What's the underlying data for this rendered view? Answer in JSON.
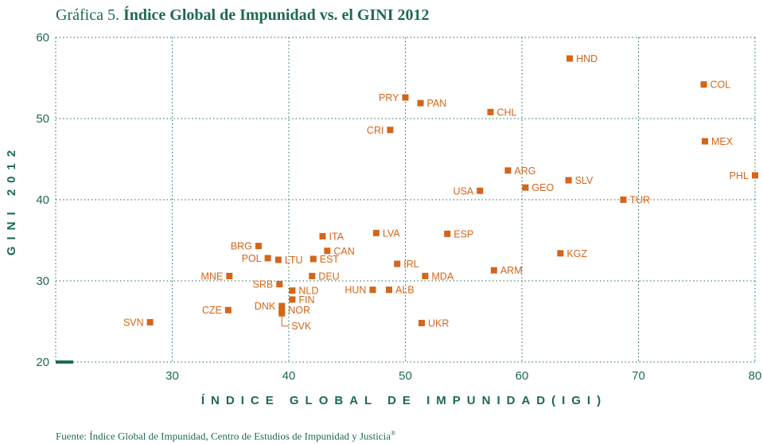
{
  "title_prefix": "Gráfica 5.",
  "title_main": "Índice Global de Impunidad vs. el GINI 2012",
  "source_text": "Fuente: Índice Global de Impunidad, Centro de Estudios de Impunidad y Justicia",
  "source_mark": "®",
  "colors": {
    "accent": "#1d6b4a",
    "marker": "#d4651a",
    "grid": "#1d6b4a"
  },
  "chart_data": {
    "type": "scatter",
    "xlabel": "ÍNDICE GLOBAL DE IMPUNIDAD(IGI)",
    "ylabel": "GINI 2012",
    "xlim": [
      20,
      80
    ],
    "ylim": [
      20,
      60
    ],
    "xticks": [
      30,
      40,
      50,
      60,
      70,
      80
    ],
    "yticks": [
      20,
      30,
      40,
      50,
      60
    ],
    "grid": true,
    "points": [
      {
        "label": "HND",
        "x": 64.1,
        "y": 57.4
      },
      {
        "label": "COL",
        "x": 75.6,
        "y": 54.2
      },
      {
        "label": "PRY",
        "x": 50.0,
        "y": 52.6
      },
      {
        "label": "PAN",
        "x": 51.3,
        "y": 51.9
      },
      {
        "label": "CHL",
        "x": 57.3,
        "y": 50.8
      },
      {
        "label": "CRI",
        "x": 48.7,
        "y": 48.6
      },
      {
        "label": "MEX",
        "x": 75.7,
        "y": 47.2
      },
      {
        "label": "ARG",
        "x": 58.8,
        "y": 43.6
      },
      {
        "label": "PHL",
        "x": 80.0,
        "y": 43.0
      },
      {
        "label": "SLV",
        "x": 64.0,
        "y": 42.4
      },
      {
        "label": "GEO",
        "x": 60.3,
        "y": 41.5
      },
      {
        "label": "USA",
        "x": 56.4,
        "y": 41.1
      },
      {
        "label": "TUR",
        "x": 68.7,
        "y": 40.0
      },
      {
        "label": "LVA",
        "x": 47.5,
        "y": 35.9
      },
      {
        "label": "ESP",
        "x": 53.6,
        "y": 35.8
      },
      {
        "label": "ITA",
        "x": 42.9,
        "y": 35.5
      },
      {
        "label": "BRG",
        "x": 37.4,
        "y": 34.3
      },
      {
        "label": "CAN",
        "x": 43.3,
        "y": 33.7
      },
      {
        "label": "KGZ",
        "x": 63.3,
        "y": 33.4
      },
      {
        "label": "POL",
        "x": 38.2,
        "y": 32.8
      },
      {
        "label": "LTU",
        "x": 39.1,
        "y": 32.6
      },
      {
        "label": "EST",
        "x": 42.1,
        "y": 32.7
      },
      {
        "label": "IRL",
        "x": 49.3,
        "y": 32.1
      },
      {
        "label": "ARM",
        "x": 57.6,
        "y": 31.3
      },
      {
        "label": "MNE",
        "x": 34.9,
        "y": 30.6
      },
      {
        "label": "DEU",
        "x": 42.0,
        "y": 30.6
      },
      {
        "label": "MDA",
        "x": 51.7,
        "y": 30.6
      },
      {
        "label": "SRB",
        "x": 39.2,
        "y": 29.6
      },
      {
        "label": "NLD",
        "x": 40.3,
        "y": 28.8
      },
      {
        "label": "HUN",
        "x": 47.2,
        "y": 28.9
      },
      {
        "label": "ALB",
        "x": 48.6,
        "y": 28.9
      },
      {
        "label": "FIN",
        "x": 40.3,
        "y": 27.7
      },
      {
        "label": "DNK",
        "x": 39.4,
        "y": 26.9
      },
      {
        "label": "NOR",
        "x": 39.4,
        "y": 26.4
      },
      {
        "label": "SVK",
        "x": 39.4,
        "y": 26.0
      },
      {
        "label": "CZE",
        "x": 34.8,
        "y": 26.4
      },
      {
        "label": "SVN",
        "x": 28.1,
        "y": 24.9
      },
      {
        "label": "UKR",
        "x": 51.4,
        "y": 24.8
      }
    ]
  }
}
